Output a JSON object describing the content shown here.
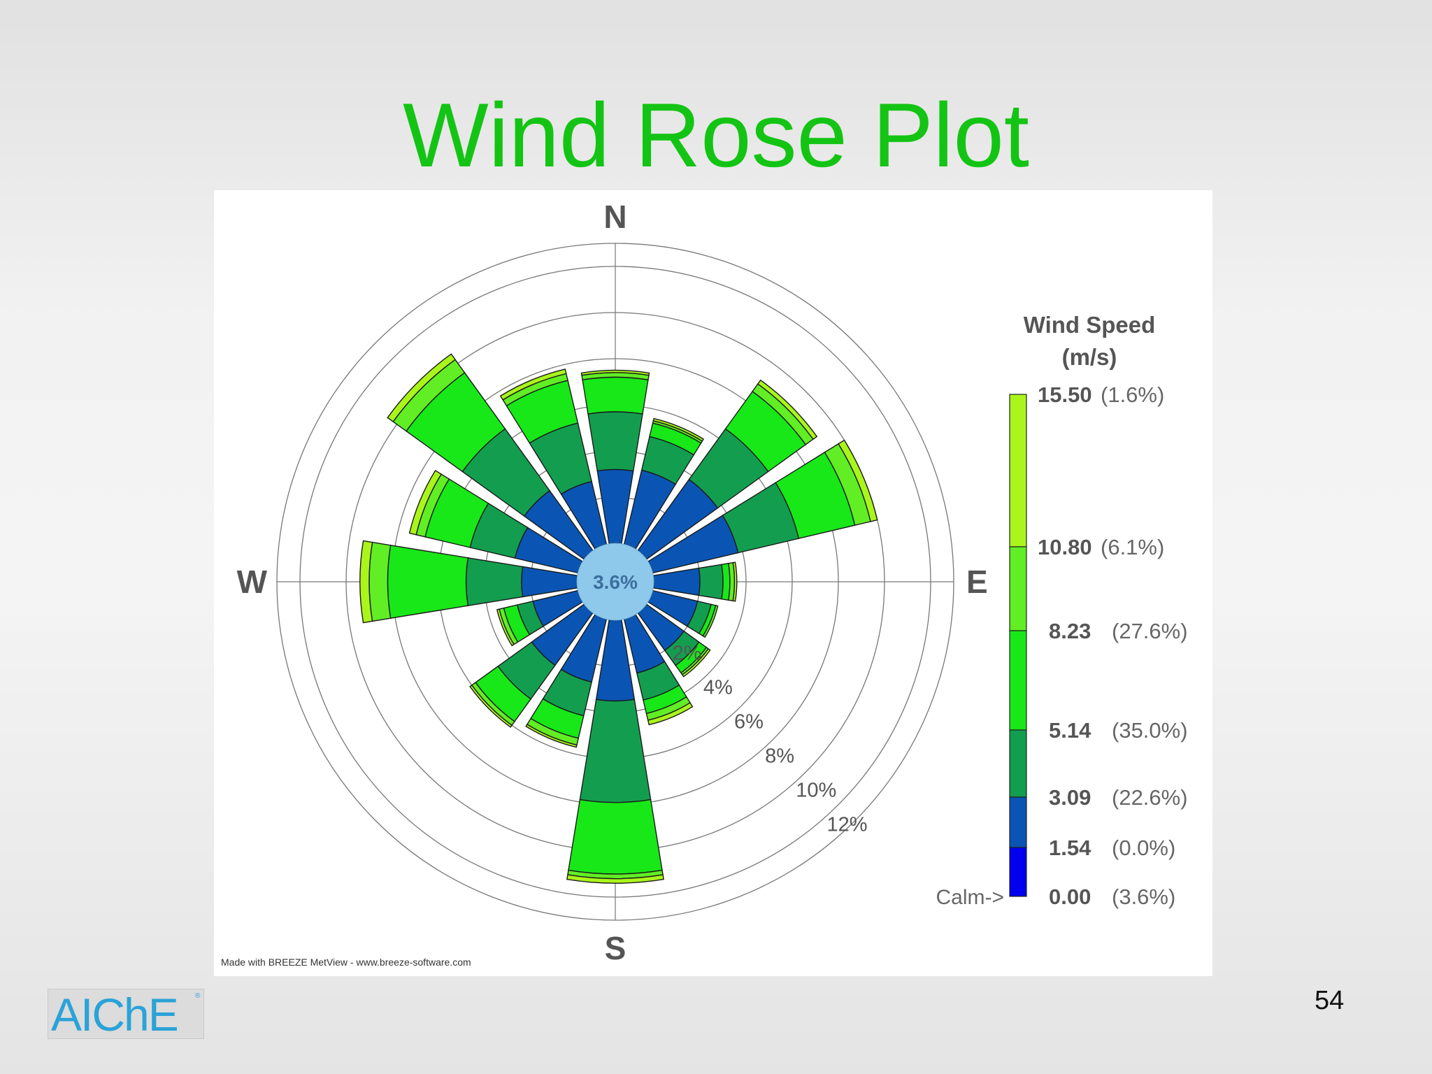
{
  "slide": {
    "title": "Wind Rose Plot",
    "page_number": "54",
    "logo_text": "AIChE",
    "logo_mark": "®",
    "credit": "Made with BREEZE MetView - www.breeze-software.com"
  },
  "chart_data": {
    "type": "wind-rose",
    "title": "",
    "directions": [
      {
        "label": "N",
        "angle": 0
      },
      {
        "label": "E",
        "angle": 90
      },
      {
        "label": "S",
        "angle": 180
      },
      {
        "label": "W",
        "angle": 270
      }
    ],
    "calm_percent": "3.6%",
    "radial_ticks": [
      2,
      4,
      6,
      8,
      10,
      12
    ],
    "radial_tick_labels": [
      "2%",
      "4%",
      "6%",
      "8%",
      "10%",
      "12%"
    ],
    "legend": {
      "title": "Wind Speed",
      "unit": "(m/s)",
      "calm_label": "Calm->",
      "bins": [
        {
          "value": "15.50",
          "pct": "(1.6%)",
          "color": "#aaf51a"
        },
        {
          "value": "10.80",
          "pct": "(6.1%)",
          "color": "#62ee24"
        },
        {
          "value": "8.23",
          "pct": "(27.6%)",
          "color": "#18e818"
        },
        {
          "value": "5.14",
          "pct": "(35.0%)",
          "color": "#139e4f"
        },
        {
          "value": "3.09",
          "pct": "(22.6%)",
          "color": "#0a55b4"
        },
        {
          "value": "1.54",
          "pct": "(0.0%)",
          "color": "#0000ee"
        },
        {
          "value": "0.00",
          "pct": "(3.6%)",
          "color": ""
        }
      ]
    },
    "bin_order": [
      "1.54-3.09",
      "3.09-5.14",
      "5.14-8.23",
      "8.23-10.80",
      "10.80-15.50",
      ">=15.50"
    ],
    "bin_colors": [
      "#0a55b4",
      "#139e4f",
      "#18e818",
      "#62ee24",
      "#aaf51a",
      "#d7fb3a"
    ],
    "sectors": [
      {
        "dir": 0,
        "cumulative": [
          3.2,
          5.7,
          7.2,
          7.4,
          7.5,
          7.5
        ]
      },
      {
        "dir": 22.5,
        "cumulative": [
          3.3,
          4.8,
          5.4,
          5.5,
          5.6,
          5.6
        ]
      },
      {
        "dir": 45,
        "cumulative": [
          3.8,
          6.5,
          8.5,
          8.9,
          9.1,
          9.1
        ]
      },
      {
        "dir": 67.5,
        "cumulative": [
          3.8,
          6.5,
          9.0,
          9.7,
          10.0,
          10.0
        ]
      },
      {
        "dir": 90,
        "cumulative": [
          2.0,
          3.0,
          3.3,
          3.5,
          3.6,
          3.6
        ]
      },
      {
        "dir": 112.5,
        "cumulative": [
          2.0,
          2.6,
          2.8,
          2.9,
          2.9,
          2.9
        ]
      },
      {
        "dir": 135,
        "cumulative": [
          2.0,
          2.8,
          3.2,
          3.3,
          3.4,
          3.4
        ]
      },
      {
        "dir": 157.5,
        "cumulative": [
          2.4,
          3.6,
          4.2,
          4.5,
          4.7,
          4.7
        ]
      },
      {
        "dir": 180,
        "cumulative": [
          3.5,
          7.9,
          11.0,
          11.2,
          11.4,
          11.4
        ]
      },
      {
        "dir": 202.5,
        "cumulative": [
          2.8,
          4.3,
          5.3,
          5.6,
          5.7,
          5.7
        ]
      },
      {
        "dir": 225,
        "cumulative": [
          2.8,
          4.6,
          5.8,
          6.0,
          6.1,
          6.1
        ]
      },
      {
        "dir": 247.5,
        "cumulative": [
          2.0,
          2.7,
          3.3,
          3.5,
          3.6,
          3.6
        ]
      },
      {
        "dir": 270,
        "cumulative": [
          2.4,
          4.8,
          8.2,
          9.0,
          9.4,
          9.4
        ]
      },
      {
        "dir": 292.5,
        "cumulative": [
          2.8,
          4.8,
          6.8,
          7.2,
          7.5,
          7.5
        ]
      },
      {
        "dir": 315,
        "cumulative": [
          3.2,
          6.5,
          9.5,
          10.2,
          10.5,
          10.5
        ]
      },
      {
        "dir": 337.5,
        "cumulative": [
          2.8,
          5.4,
          7.3,
          7.6,
          7.8,
          7.8
        ]
      }
    ]
  }
}
